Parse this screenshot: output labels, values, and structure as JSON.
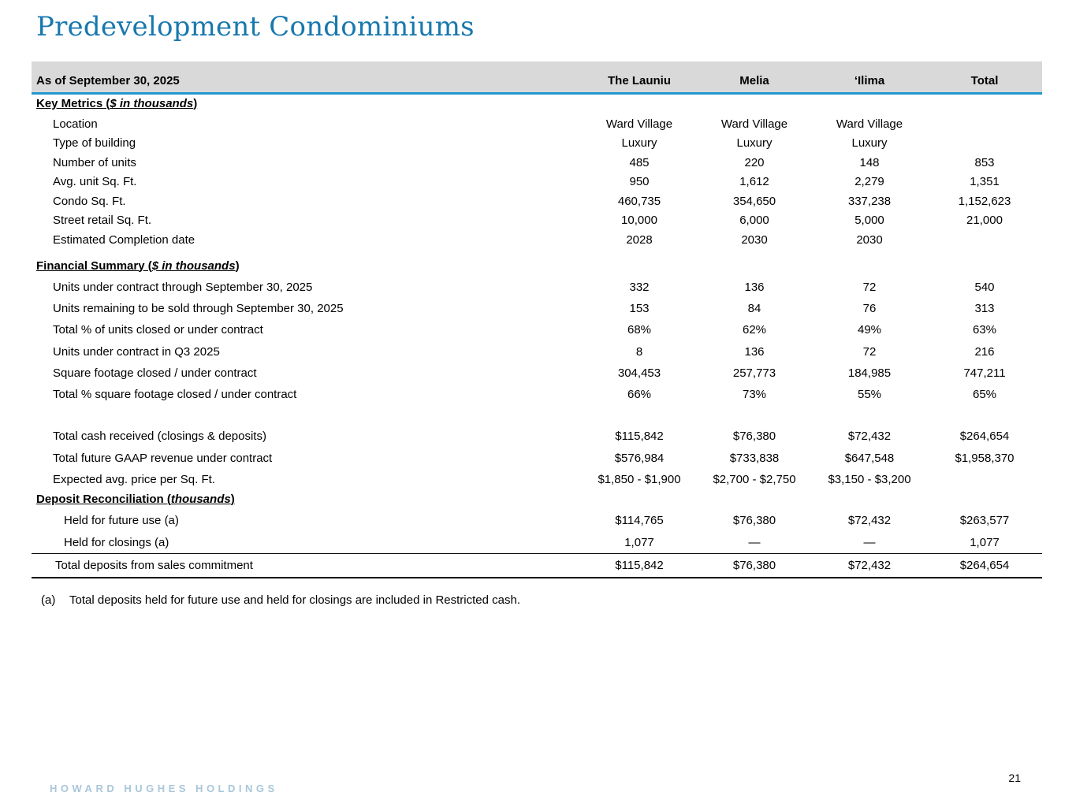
{
  "title": "Predevelopment Condominiums",
  "colors": {
    "title_blue": "#1878ae",
    "rule_blue": "#2297ce",
    "header_gray": "#d9d9d9",
    "brand_blue": "#a9c7da"
  },
  "table": {
    "as_of_label": "As of September 30, 2025",
    "columns": [
      "The Launiu",
      "Melia",
      "‘Ilima",
      "Total"
    ],
    "sections": [
      {
        "heading": {
          "pre": "Key Metrics (",
          "italic": "$ in thousands",
          "post": ")"
        },
        "rows": [
          {
            "label": "Location",
            "values": [
              "Ward Village",
              "Ward Village",
              "Ward Village",
              ""
            ]
          },
          {
            "label": "Type of building",
            "values": [
              "Luxury",
              "Luxury",
              "Luxury",
              ""
            ]
          },
          {
            "label": "Number of units",
            "values": [
              "485",
              "220",
              "148",
              "853"
            ]
          },
          {
            "label": "Avg. unit Sq. Ft.",
            "values": [
              "950",
              "1,612",
              "2,279",
              "1,351"
            ]
          },
          {
            "label": "Condo Sq. Ft.",
            "values": [
              "460,735",
              "354,650",
              "337,238",
              "1,152,623"
            ]
          },
          {
            "label": "Street retail Sq. Ft.",
            "values": [
              "10,000",
              "6,000",
              "5,000",
              "21,000"
            ]
          },
          {
            "label": "Estimated Completion date",
            "values": [
              "2028",
              "2030",
              "2030",
              ""
            ]
          }
        ]
      },
      {
        "heading": {
          "pre": "Financial Summary (",
          "italic": "$ in thousands",
          "post": ")"
        },
        "rows": [
          {
            "label": "Units under contract through September 30, 2025",
            "values": [
              "332",
              "136",
              "72",
              "540"
            ]
          },
          {
            "label": "Units remaining to be sold through September 30, 2025",
            "values": [
              "153",
              "84",
              "76",
              "313"
            ]
          },
          {
            "label": "Total % of units closed or under contract",
            "values": [
              "68%",
              "62%",
              "49%",
              "63%"
            ]
          },
          {
            "label": "Units under contract in Q3 2025",
            "values": [
              "8",
              "136",
              "72",
              "216"
            ]
          },
          {
            "label": "Square footage closed / under contract",
            "values": [
              "304,453",
              "257,773",
              "184,985",
              "747,211"
            ]
          },
          {
            "label": "Total % square footage closed / under contract",
            "values": [
              "66%",
              "73%",
              "55%",
              "65%"
            ]
          },
          {
            "label": "Total cash received (closings & deposits)",
            "values": [
              "$115,842",
              "$76,380",
              "$72,432",
              "$264,654"
            ]
          },
          {
            "label": "Total future GAAP revenue under contract",
            "values": [
              "$576,984",
              "$733,838",
              "$647,548",
              "$1,958,370"
            ]
          },
          {
            "label": "Expected avg. price per Sq. Ft.",
            "values": [
              "$1,850 - $1,900",
              "$2,700 - $2,750",
              "$3,150 - $3,200",
              ""
            ]
          }
        ]
      },
      {
        "heading": {
          "pre": "Deposit Reconciliation (",
          "italic": "thousands",
          "post": ")"
        },
        "rows": [
          {
            "label": "Held for future use (a)",
            "values": [
              "$114,765",
              "$76,380",
              "$72,432",
              "$263,577"
            ]
          },
          {
            "label": "Held for closings (a)",
            "values": [
              "1,077",
              "—",
              "—",
              "1,077"
            ]
          },
          {
            "label": "Total deposits from sales commitment",
            "values": [
              "$115,842",
              "$76,380",
              "$72,432",
              "$264,654"
            ]
          }
        ]
      }
    ]
  },
  "footnote": {
    "marker": "(a)",
    "text": "Total deposits held for future use and held for closings are included in Restricted cash."
  },
  "footer": {
    "brand": "HOWARD HUGHES HOLDINGS",
    "page_number": "21"
  }
}
